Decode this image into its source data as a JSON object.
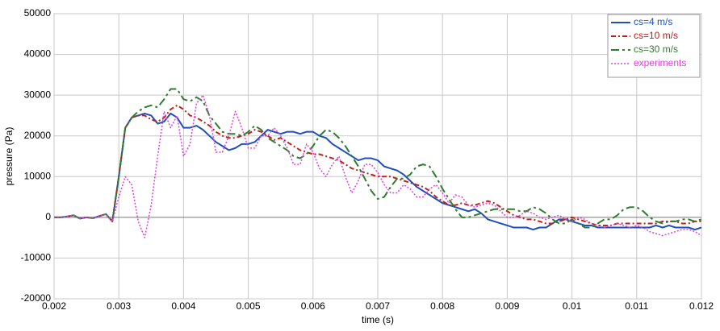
{
  "chart_data": {
    "type": "line",
    "x_label": "time (s)",
    "y_label": "pressure (Pa)",
    "xlim": [
      0.002,
      0.012
    ],
    "ylim": [
      -20000,
      50000
    ],
    "xticks": [
      0.002,
      0.003,
      0.004,
      0.005,
      0.006,
      0.007,
      0.008,
      0.009,
      0.01,
      0.011,
      0.012
    ],
    "yticks": [
      -20000,
      -10000,
      0,
      10000,
      20000,
      30000,
      40000,
      50000
    ],
    "grid": true,
    "legend": "upper right",
    "x": [
      0.002,
      0.0021,
      0.0022,
      0.0023,
      0.0024,
      0.0025,
      0.0026,
      0.0027,
      0.0028,
      0.0029,
      0.003,
      0.0031,
      0.0032,
      0.0033,
      0.0034,
      0.0035,
      0.0036,
      0.0037,
      0.0038,
      0.0039,
      0.004,
      0.0041,
      0.0042,
      0.0043,
      0.0044,
      0.0045,
      0.0046,
      0.0047,
      0.0048,
      0.0049,
      0.005,
      0.0051,
      0.0052,
      0.0053,
      0.0054,
      0.0055,
      0.0056,
      0.0057,
      0.0058,
      0.0059,
      0.006,
      0.0061,
      0.0062,
      0.0063,
      0.0064,
      0.0065,
      0.0066,
      0.0067,
      0.0068,
      0.0069,
      0.007,
      0.0071,
      0.0072,
      0.0073,
      0.0074,
      0.0075,
      0.0076,
      0.0077,
      0.0078,
      0.0079,
      0.008,
      0.0081,
      0.0082,
      0.0083,
      0.0084,
      0.0085,
      0.0086,
      0.0087,
      0.0088,
      0.0089,
      0.009,
      0.0091,
      0.0092,
      0.0093,
      0.0094,
      0.0095,
      0.0096,
      0.0097,
      0.0098,
      0.0099,
      0.01,
      0.0101,
      0.0102,
      0.0103,
      0.0104,
      0.0105,
      0.0106,
      0.0107,
      0.0108,
      0.0109,
      0.011,
      0.0111,
      0.0112,
      0.0113,
      0.0114,
      0.0115,
      0.0116,
      0.0117,
      0.0118,
      0.0119,
      0.012
    ],
    "series": [
      {
        "name": "cs=4 m/s",
        "color": "#1f4fbf",
        "dash": "none",
        "width": 2,
        "values": [
          0,
          0,
          200,
          500,
          -300,
          0,
          -200,
          300,
          800,
          -1000,
          10000,
          22000,
          24500,
          25000,
          25500,
          25000,
          23000,
          23500,
          25500,
          24500,
          22000,
          22000,
          22500,
          21500,
          20000,
          18500,
          17500,
          16500,
          17000,
          18000,
          18000,
          18500,
          20000,
          21500,
          21000,
          20500,
          21000,
          21000,
          20500,
          21000,
          21000,
          20000,
          19500,
          18000,
          17000,
          16000,
          15000,
          14000,
          14500,
          14500,
          14000,
          12500,
          12000,
          11500,
          10500,
          9000,
          7500,
          6500,
          5500,
          4500,
          3500,
          3000,
          2500,
          2000,
          1500,
          2000,
          1000,
          -500,
          -1000,
          -1500,
          -2000,
          -2500,
          -2500,
          -2500,
          -3000,
          -2500,
          -2500,
          -1500,
          -500,
          -500,
          -1000,
          -1500,
          -2000,
          -2000,
          -2500,
          -2500,
          -2500,
          -2500,
          -2500,
          -2500,
          -2500,
          -2500,
          -2500,
          -2000,
          -2500,
          -2000,
          -2500,
          -2500,
          -2500,
          -3000,
          -2500
        ]
      },
      {
        "name": "cs=10 m/s",
        "color": "#c0201a",
        "dash": "6 3 2 3",
        "width": 2,
        "values": [
          0,
          0,
          200,
          500,
          -300,
          0,
          -200,
          300,
          800,
          -1000,
          10000,
          22000,
          24500,
          25000,
          25000,
          24000,
          23500,
          24500,
          26500,
          27500,
          26500,
          25000,
          24500,
          23500,
          22500,
          21000,
          20000,
          19500,
          19500,
          20000,
          20500,
          21500,
          21000,
          20000,
          19000,
          19500,
          18500,
          17500,
          16500,
          16000,
          15500,
          15500,
          15000,
          14500,
          14000,
          13000,
          12000,
          11500,
          11000,
          10500,
          10000,
          10000,
          10000,
          9500,
          9000,
          8500,
          8000,
          7500,
          6500,
          5000,
          4000,
          3000,
          3000,
          3500,
          3000,
          3000,
          3500,
          4000,
          3500,
          2500,
          1500,
          500,
          0,
          -500,
          -500,
          -1000,
          -1500,
          -1500,
          -1000,
          -500,
          0,
          -500,
          -1000,
          -1500,
          -2000,
          -2000,
          -2000,
          -1500,
          -1500,
          -1500,
          -1500,
          -1500,
          -1500,
          -1500,
          -1000,
          -1000,
          -1000,
          -1500,
          -1500,
          -1000,
          -1000
        ]
      },
      {
        "name": "cs=30 m/s",
        "color": "#2e7d2e",
        "dash": "10 4 3 4",
        "width": 2,
        "values": [
          0,
          0,
          200,
          500,
          -300,
          0,
          -200,
          300,
          800,
          -1000,
          10000,
          22000,
          24500,
          26000,
          27000,
          27500,
          27000,
          29000,
          31500,
          31500,
          29000,
          28500,
          29500,
          28500,
          25000,
          23000,
          21000,
          20500,
          20500,
          20000,
          21000,
          22500,
          21500,
          19500,
          18500,
          17500,
          16500,
          15000,
          14500,
          15500,
          17500,
          20000,
          21500,
          21000,
          19500,
          17500,
          15000,
          12500,
          9500,
          6500,
          4500,
          5000,
          7500,
          9500,
          9500,
          10500,
          12500,
          13000,
          12500,
          10000,
          7000,
          4500,
          2000,
          0,
          0,
          500,
          1000,
          1500,
          2000,
          2000,
          2000,
          2000,
          1500,
          1500,
          2500,
          2000,
          1000,
          -500,
          -1500,
          -1500,
          -500,
          -1500,
          -2500,
          -2500,
          -1500,
          -500,
          -500,
          500,
          2000,
          2500,
          2500,
          1500,
          0,
          -1000,
          -1500,
          -1000,
          -1000,
          -500,
          -500,
          -1000,
          -500
        ]
      },
      {
        "name": "experiments",
        "color": "#e040e0",
        "dash": "2 2",
        "width": 1.5,
        "values": [
          0,
          0,
          200,
          500,
          -300,
          0,
          -200,
          300,
          800,
          -1000,
          5000,
          10000,
          8000,
          -1000,
          -5000,
          3000,
          15000,
          26000,
          22000,
          25000,
          15000,
          18000,
          28000,
          30000,
          25000,
          16000,
          16000,
          20000,
          26000,
          22000,
          17000,
          17000,
          20000,
          20000,
          22000,
          20000,
          17000,
          13000,
          13000,
          18000,
          16000,
          12000,
          10000,
          13000,
          15000,
          10000,
          6000,
          9000,
          13000,
          13000,
          11000,
          8000,
          6000,
          6000,
          8000,
          7000,
          5000,
          5000,
          7000,
          8000,
          6000,
          3500,
          5500,
          5000,
          3000,
          2500,
          3000,
          3500,
          3000,
          1500,
          0,
          0,
          500,
          1500,
          1000,
          0,
          -500,
          0,
          500,
          -500,
          -1000,
          0,
          -500,
          -1500,
          -2000,
          -2500,
          -2000,
          -1500,
          -2000,
          -2500,
          -2000,
          -2500,
          -3500,
          -4000,
          -4500,
          -4000,
          -3500,
          -3000,
          -3000,
          -3500,
          -4500
        ]
      }
    ]
  }
}
